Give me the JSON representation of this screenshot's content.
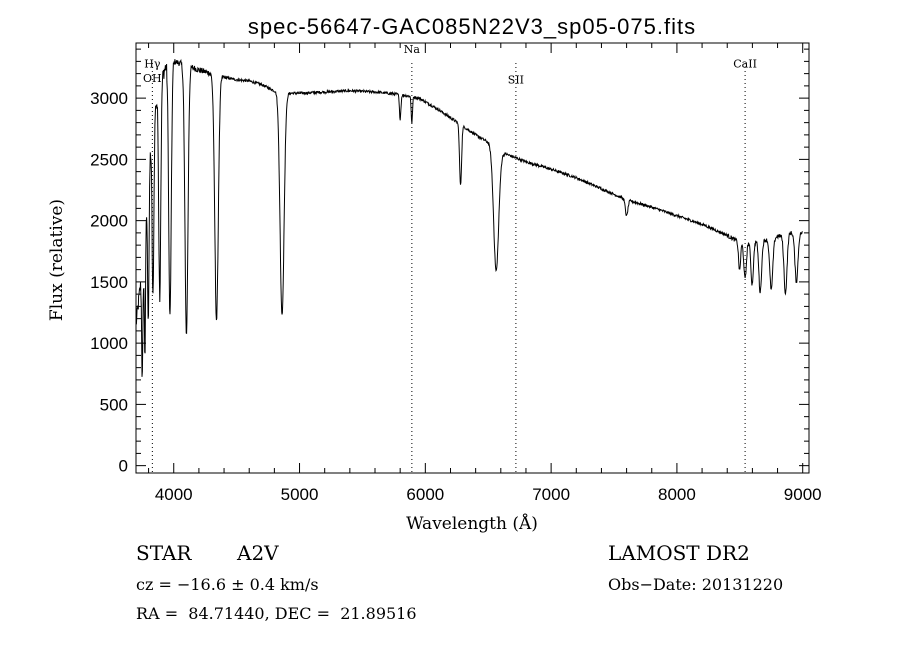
{
  "chart_data": {
    "type": "line",
    "title": "spec-56647-GAC085N22V3_sp05-075.fits",
    "xlabel": "Wavelength (Å)",
    "ylabel": "Flux (relative)",
    "xlim": [
      3700,
      9050
    ],
    "ylim": [
      -60,
      3450
    ],
    "x_ticks": [
      4000,
      5000,
      6000,
      7000,
      8000,
      9000
    ],
    "y_ticks": [
      0,
      500,
      1000,
      1500,
      2000,
      2500,
      3000
    ],
    "line_markers": [
      {
        "label": "OH",
        "x": 3830,
        "label_y": 3130
      },
      {
        "label": "Hγ",
        "x": 3830,
        "label_y": 3250
      },
      {
        "label": "Na",
        "x": 5893,
        "label_y": 3370
      },
      {
        "label": "SII",
        "x": 6720,
        "label_y": 3120
      },
      {
        "label": "CaII",
        "x": 8542,
        "label_y": 3250
      }
    ],
    "continuum": [
      [
        3700,
        1150
      ],
      [
        3760,
        1700
      ],
      [
        3800,
        2450
      ],
      [
        3850,
        2900
      ],
      [
        3900,
        3150
      ],
      [
        3950,
        3300
      ],
      [
        4000,
        3300
      ],
      [
        4100,
        3270
      ],
      [
        4200,
        3230
      ],
      [
        4300,
        3200
      ],
      [
        4400,
        3170
      ],
      [
        4500,
        3150
      ],
      [
        4600,
        3140
      ],
      [
        4700,
        3110
      ],
      [
        4800,
        3060
      ],
      [
        4900,
        3040
      ],
      [
        5000,
        3040
      ],
      [
        5200,
        3050
      ],
      [
        5400,
        3060
      ],
      [
        5600,
        3050
      ],
      [
        5800,
        3030
      ],
      [
        5950,
        3000
      ],
      [
        6100,
        2910
      ],
      [
        6200,
        2840
      ],
      [
        6300,
        2770
      ],
      [
        6400,
        2700
      ],
      [
        6500,
        2640
      ],
      [
        6600,
        2560
      ],
      [
        6700,
        2520
      ],
      [
        6800,
        2480
      ],
      [
        7000,
        2420
      ],
      [
        7200,
        2350
      ],
      [
        7400,
        2260
      ],
      [
        7600,
        2170
      ],
      [
        7800,
        2110
      ],
      [
        8000,
        2040
      ],
      [
        8200,
        1970
      ],
      [
        8400,
        1880
      ],
      [
        8500,
        1820
      ],
      [
        8700,
        1840
      ],
      [
        8900,
        1900
      ],
      [
        9000,
        1900
      ]
    ],
    "absorption_lines": [
      {
        "x": 3750,
        "depth": 900,
        "width": 5
      },
      {
        "x": 3771,
        "depth": 1000,
        "width": 5
      },
      {
        "x": 3798,
        "depth": 1200,
        "width": 6
      },
      {
        "x": 3835,
        "depth": 1400,
        "width": 7
      },
      {
        "x": 3889,
        "depth": 1700,
        "width": 8
      },
      {
        "x": 3970,
        "depth": 2100,
        "width": 10
      },
      {
        "x": 4101,
        "depth": 2200,
        "width": 12
      },
      {
        "x": 4340,
        "depth": 2000,
        "width": 14
      },
      {
        "x": 4861,
        "depth": 1820,
        "width": 16
      },
      {
        "x": 5800,
        "depth": 200,
        "width": 6
      },
      {
        "x": 5893,
        "depth": 220,
        "width": 5
      },
      {
        "x": 6280,
        "depth": 500,
        "width": 8
      },
      {
        "x": 6563,
        "depth": 1000,
        "width": 20
      },
      {
        "x": 7600,
        "depth": 130,
        "width": 10
      },
      {
        "x": 8498,
        "depth": 230,
        "width": 8
      },
      {
        "x": 8542,
        "depth": 300,
        "width": 10
      },
      {
        "x": 8598,
        "depth": 350,
        "width": 10
      },
      {
        "x": 8662,
        "depth": 420,
        "width": 11
      },
      {
        "x": 8750,
        "depth": 420,
        "width": 12
      },
      {
        "x": 8863,
        "depth": 480,
        "width": 12
      },
      {
        "x": 8950,
        "depth": 400,
        "width": 12
      }
    ]
  },
  "info": {
    "object_type": "STAR",
    "subclass": "A2V",
    "survey": "LAMOST DR2",
    "redshift": "cz = −16.6 ± 0.4 km/s",
    "obs_date": "Obs−Date: 20131220",
    "coords": "RA =  84.71440, DEC =  21.89516"
  }
}
